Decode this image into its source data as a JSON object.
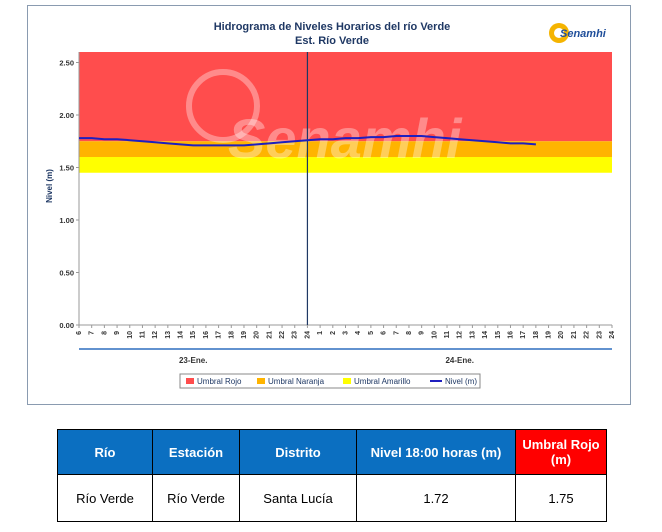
{
  "chart_data": {
    "type": "line",
    "title": "Hidrograma de Niveles Horarios del río Verde",
    "subtitle": "Est. Río Verde",
    "ylabel": "Nivel (m)",
    "ylim": [
      0,
      2.6
    ],
    "yticks": [
      "2.50",
      "2.00",
      "1.50",
      "1.00",
      "0.50",
      "0.00"
    ],
    "xticks": [
      "6",
      "7",
      "8",
      "9",
      "10",
      "11",
      "12",
      "13",
      "14",
      "15",
      "16",
      "17",
      "18",
      "19",
      "20",
      "21",
      "22",
      "23",
      "24",
      "1",
      "2",
      "3",
      "4",
      "5",
      "6",
      "7",
      "8",
      "9",
      "10",
      "11",
      "12",
      "13",
      "14",
      "15",
      "16",
      "17",
      "18",
      "19",
      "20",
      "21",
      "22",
      "23",
      "24"
    ],
    "groups": [
      "23-Ene.",
      "24-Ene."
    ],
    "bands": [
      {
        "name": "Umbral Rojo",
        "from": 1.75,
        "to": 2.6,
        "color": "#ff4d4d"
      },
      {
        "name": "Umbral Naranja",
        "from": 1.6,
        "to": 1.75,
        "color": "#ffb400"
      },
      {
        "name": "Umbral Amarillo",
        "from": 1.45,
        "to": 1.6,
        "color": "#ffff00"
      }
    ],
    "series": [
      {
        "name": "Nivel (m)",
        "color": "#1f1fbf",
        "values": [
          1.78,
          1.78,
          1.77,
          1.77,
          1.76,
          1.75,
          1.74,
          1.73,
          1.72,
          1.71,
          1.71,
          1.71,
          1.71,
          1.71,
          1.72,
          1.73,
          1.74,
          1.75,
          1.76,
          1.77,
          1.77,
          1.78,
          1.78,
          1.79,
          1.79,
          1.8,
          1.8,
          1.8,
          1.79,
          1.78,
          1.77,
          1.76,
          1.75,
          1.74,
          1.73,
          1.73,
          1.72
        ]
      }
    ],
    "legend": [
      "Umbral Rojo",
      "Umbral Naranja",
      "Umbral Amarillo",
      "Nivel (m)"
    ],
    "legend_position": "bottom",
    "grid": false,
    "logo": "Senamhi",
    "watermark": "Senamhi"
  },
  "table": {
    "headers": [
      "Río",
      "Estación",
      "Distrito",
      "Nivel 18:00 horas (m)",
      "Umbral Rojo (m)"
    ],
    "row": [
      "Río Verde",
      "Río Verde",
      "Santa Lucía",
      "1.72",
      "1.75"
    ]
  }
}
